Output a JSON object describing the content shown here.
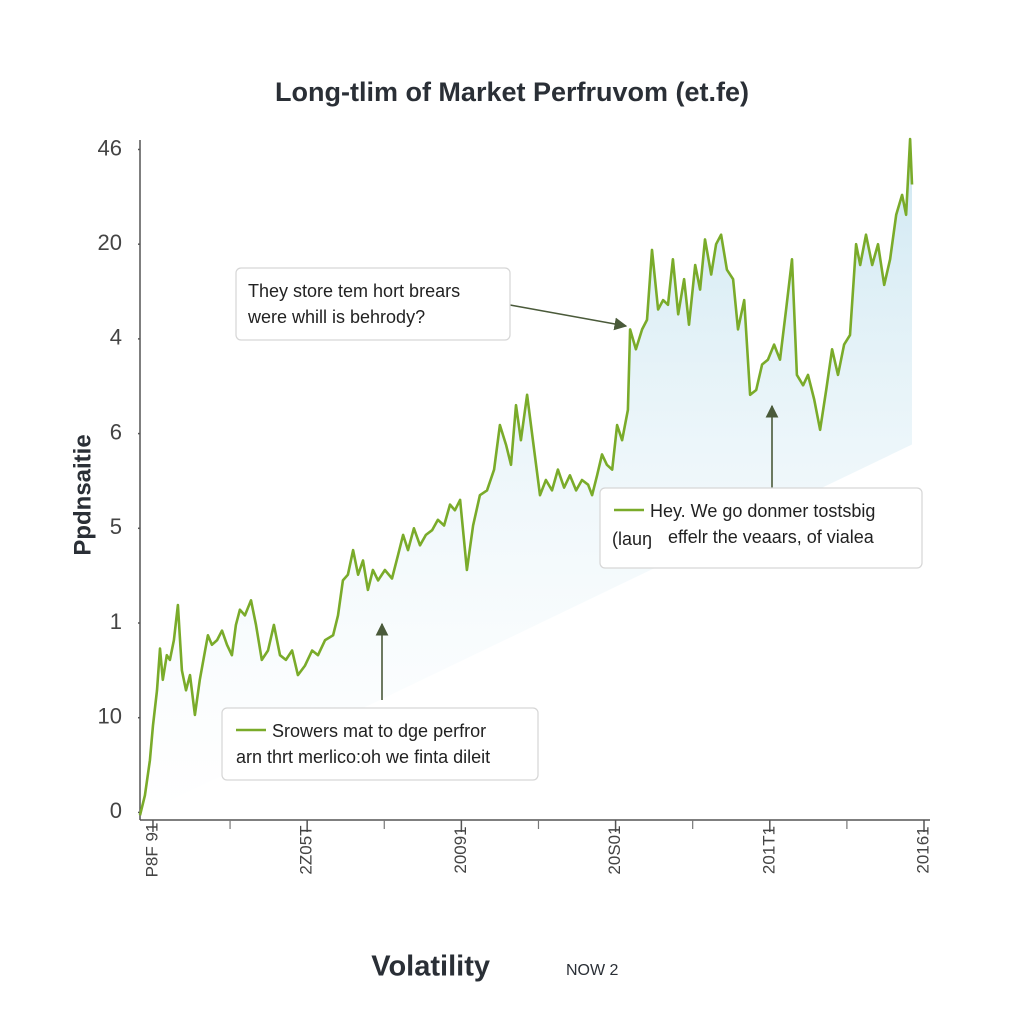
{
  "chart_data": {
    "type": "line",
    "title": "Long-tlim of Market Perfruvom (et.fe)",
    "ylabel": "Ppdnsaitie",
    "xlabel": "Volatility",
    "xlabel_note": "NOW 2",
    "color": "#7aab2a",
    "area": true,
    "xlim": [
      -4.2,
      250
    ],
    "xticks": [
      {
        "value": 0,
        "label": "P8F 91"
      },
      {
        "value": 50,
        "label": "2Z05T"
      },
      {
        "value": 100,
        "label": "20091"
      },
      {
        "value": 150,
        "label": "20S01"
      },
      {
        "value": 200,
        "label": "201T1"
      },
      {
        "value": 250,
        "label": "20161"
      }
    ],
    "ylim": [
      -0.08,
      7.1
    ],
    "yticks": [
      {
        "value": 0,
        "label": "0"
      },
      {
        "value": 1,
        "label": "10"
      },
      {
        "value": 2,
        "label": "1"
      },
      {
        "value": 3,
        "label": "5"
      },
      {
        "value": 4,
        "label": "6"
      },
      {
        "value": 5,
        "label": "4"
      },
      {
        "value": 6,
        "label": "20"
      },
      {
        "value": 7,
        "label": "46"
      }
    ],
    "x": [
      -4.2,
      -2.6,
      -1.0,
      0,
      1.3,
      2.3,
      3.2,
      4.5,
      5.5,
      6.8,
      8.1,
      9.4,
      10.7,
      12.0,
      13.6,
      15.2,
      16.9,
      17.8,
      19.1,
      20.8,
      22.4,
      24.0,
      25.6,
      26.9,
      28.2,
      29.8,
      31.8,
      33.4,
      35.3,
      37.3,
      39.2,
      41.2,
      43.1,
      45.1,
      47.0,
      49.3,
      51.6,
      53.5,
      55.8,
      58.4,
      60.0,
      61.6,
      63.2,
      64.9,
      66.5,
      68.1,
      69.7,
      71.3,
      73.0,
      75.2,
      77.5,
      79.5,
      81.1,
      82.7,
      84.6,
      86.6,
      88.5,
      90.5,
      92.4,
      94.4,
      96.3,
      97.9,
      99.6,
      101.8,
      103.8,
      106.0,
      108.3,
      110.6,
      112.5,
      114.5,
      116.1,
      117.7,
      119.3,
      121.3,
      123.2,
      125.5,
      127.4,
      129.4,
      131.3,
      133.3,
      135.2,
      137.2,
      139.1,
      141.1,
      142.4,
      144.0,
      145.6,
      147.2,
      148.9,
      150.5,
      152.1,
      154.0,
      154.7,
      156.6,
      158.6,
      160.2,
      161.8,
      163.8,
      165.4,
      167.0,
      168.6,
      170.3,
      172.2,
      173.8,
      175.8,
      177.4,
      179.0,
      181.0,
      182.6,
      184.2,
      186.1,
      188.1,
      189.7,
      191.7,
      193.6,
      195.6,
      197.5,
      199.4,
      201.4,
      203.3,
      205.3,
      207.2,
      208.8,
      210.8,
      212.4,
      214.4,
      216.3,
      218.3,
      220.2,
      222.1,
      224.1,
      226.0,
      228.0,
      229.3,
      231.2,
      233.2,
      235.1,
      237.1,
      239.0,
      241.0,
      242.9,
      244.2,
      245.5,
      246.1
    ],
    "values": [
      -0.03,
      0.18,
      0.55,
      0.92,
      1.29,
      1.73,
      1.4,
      1.66,
      1.61,
      1.82,
      2.19,
      1.5,
      1.29,
      1.45,
      1.03,
      1.4,
      1.71,
      1.87,
      1.77,
      1.82,
      1.92,
      1.77,
      1.66,
      1.98,
      2.14,
      2.08,
      2.24,
      1.98,
      1.61,
      1.71,
      1.98,
      1.66,
      1.61,
      1.71,
      1.45,
      1.55,
      1.71,
      1.66,
      1.82,
      1.87,
      2.08,
      2.45,
      2.51,
      2.77,
      2.51,
      2.66,
      2.35,
      2.56,
      2.45,
      2.56,
      2.47,
      2.72,
      2.93,
      2.77,
      3.0,
      2.82,
      2.93,
      2.98,
      3.09,
      3.03,
      3.25,
      3.19,
      3.3,
      2.56,
      3.03,
      3.35,
      3.4,
      3.62,
      4.09,
      3.88,
      3.67,
      4.3,
      3.93,
      4.41,
      3.93,
      3.35,
      3.51,
      3.4,
      3.62,
      3.43,
      3.56,
      3.4,
      3.51,
      3.46,
      3.35,
      3.56,
      3.78,
      3.67,
      3.62,
      4.09,
      3.93,
      4.25,
      5.1,
      4.89,
      5.1,
      5.2,
      5.94,
      5.31,
      5.41,
      5.36,
      5.84,
      5.26,
      5.63,
      5.15,
      5.78,
      5.52,
      6.05,
      5.68,
      6.0,
      6.1,
      5.73,
      5.63,
      5.1,
      5.41,
      4.41,
      4.46,
      4.73,
      4.78,
      4.94,
      4.78,
      5.31,
      5.84,
      4.62,
      4.51,
      4.62,
      4.36,
      4.04,
      4.46,
      4.89,
      4.62,
      4.94,
      5.04,
      6.0,
      5.78,
      6.1,
      5.78,
      6.0,
      5.57,
      5.84,
      6.31,
      6.52,
      6.31,
      7.11,
      6.63
    ],
    "annotations": [
      {
        "lines": [
          "They store tem hort brears",
          "were whill is behrody?"
        ]
      },
      {
        "lines": [
          "Hey. We go donmer tostsbig",
          "effelr the veaars, of vialea"
        ],
        "prefix": "(lauŋ"
      },
      {
        "lines": [
          "Srowers mat to dge perfror",
          "arn thrt merlico:oh we finta dileit"
        ]
      }
    ]
  }
}
